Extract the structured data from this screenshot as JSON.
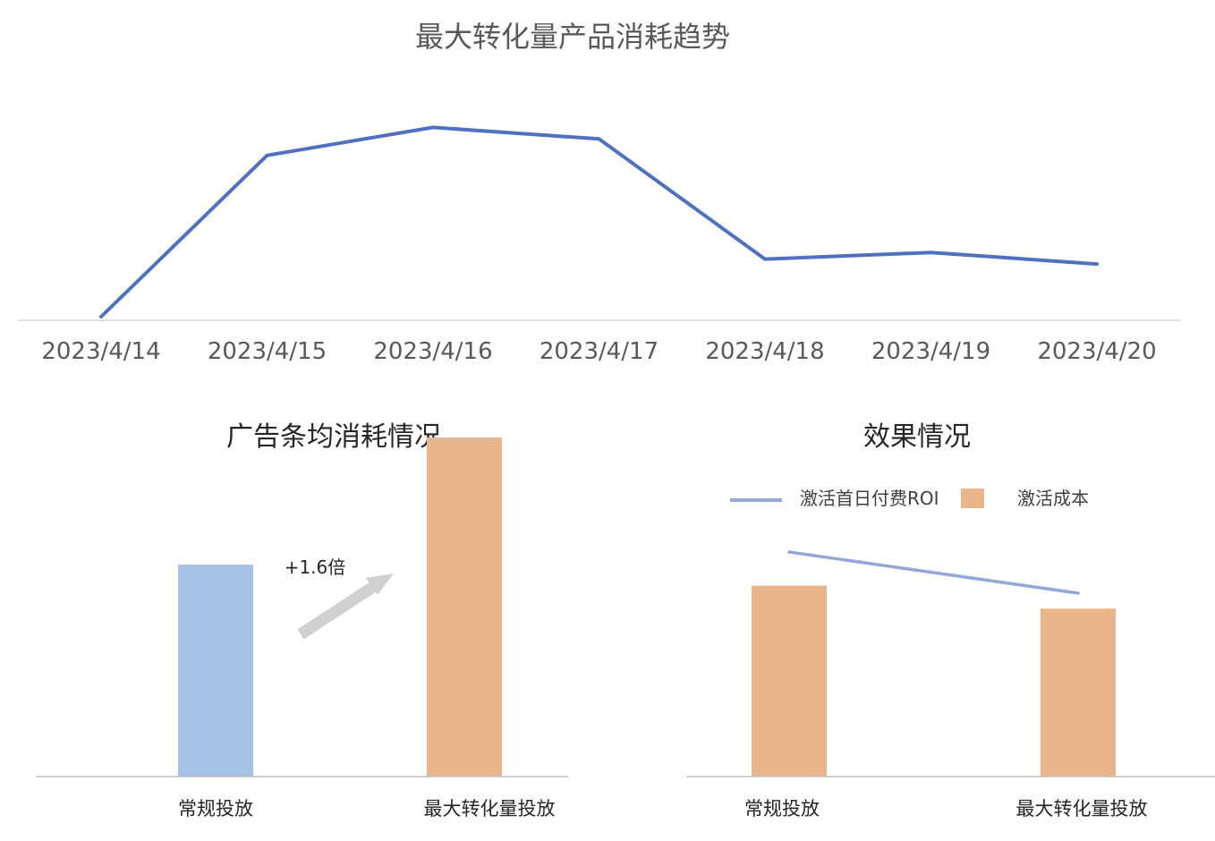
{
  "chart_data": [
    {
      "type": "line",
      "title": "最大转化量产品消耗趋势",
      "categories": [
        "2023/4/14",
        "2023/4/15",
        "2023/4/16",
        "2023/4/17",
        "2023/4/18",
        "2023/4/19",
        "2023/4/20"
      ],
      "series": [
        {
          "values": [
            0,
            98,
            115,
            108,
            35,
            39,
            32
          ]
        }
      ],
      "ylim": [
        0,
        125
      ],
      "grid": false,
      "colors": {
        "line": "#4f71be",
        "axis": "#d9d9d9"
      }
    },
    {
      "type": "bar",
      "title": "广告条均消耗情况",
      "categories": [
        "常规投放",
        "最大转化量投放"
      ],
      "values": [
        1.0,
        1.6
      ],
      "ylim": [
        0,
        1.9
      ],
      "annotation": "+1.6倍",
      "colors": {
        "bars": [
          "#a5c1e6",
          "#ebb58b"
        ],
        "arrow": "#d0d0d0",
        "axis": "#bfbfbf"
      }
    },
    {
      "type": "bar",
      "title": "效果情况",
      "categories": [
        "常规投放",
        "最大转化量投放"
      ],
      "series": [
        {
          "name": "激活成本",
          "type": "bar",
          "values": [
            1.0,
            0.88
          ]
        },
        {
          "name": "激活首日付费ROI",
          "type": "line",
          "values": [
            1.0,
            0.77
          ]
        }
      ],
      "ylim": [
        0,
        1.2
      ],
      "legend": "top",
      "colors": {
        "bar": "#ebb58b",
        "line": "#93a8d6",
        "axis": "#bfbfbf"
      }
    }
  ]
}
